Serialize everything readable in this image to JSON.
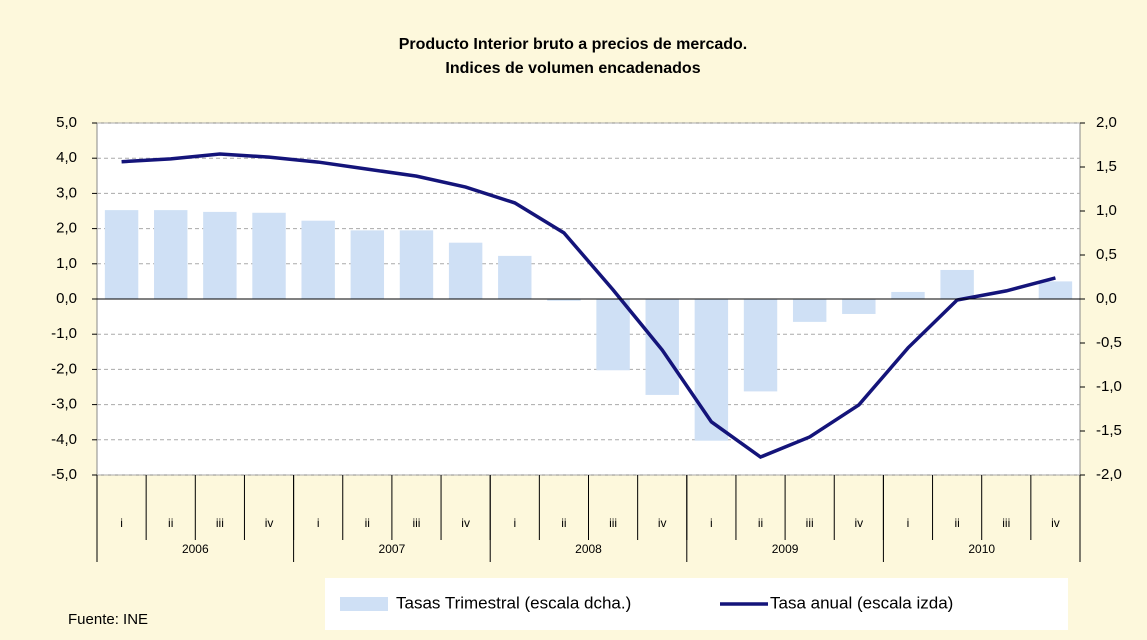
{
  "chart_data": {
    "type": "bar_line",
    "title": "Producto Interior bruto a precios de mercado.",
    "subtitle": "Indices de volumen encadenados",
    "categories": [
      "i",
      "ii",
      "iii",
      "iv",
      "i",
      "ii",
      "iii",
      "iv",
      "i",
      "ii",
      "iii",
      "iv",
      "i",
      "ii",
      "iii",
      "iv",
      "i",
      "ii",
      "iii",
      "iv"
    ],
    "years": [
      "2006",
      "2007",
      "2008",
      "2009",
      "2010"
    ],
    "series": [
      {
        "name": "Tasas Trimestral (escala dcha.)",
        "color": "#cfe0f5",
        "axis": "y2",
        "kind": "bar",
        "values": [
          1.01,
          1.01,
          0.99,
          0.98,
          0.89,
          0.78,
          0.78,
          0.64,
          0.49,
          -0.02,
          -0.81,
          -1.09,
          -1.61,
          -1.05,
          -0.26,
          -0.17,
          0.08,
          0.33,
          0.0,
          0.2
        ]
      },
      {
        "name": "Tasa anual (escala izda)",
        "color": "#14147a",
        "kind": "line",
        "values": [
          3.9,
          3.98,
          4.12,
          4.03,
          3.89,
          3.69,
          3.49,
          3.18,
          2.73,
          1.88,
          0.26,
          -1.45,
          -3.49,
          -4.49,
          -3.92,
          -3.01,
          -1.39,
          -0.03,
          0.23,
          0.6
        ]
      }
    ],
    "ylim": [
      -5,
      5
    ],
    "yticks": [
      {
        "value": 5,
        "label": "5,0"
      },
      {
        "value": 4,
        "label": "4,0"
      },
      {
        "value": 3,
        "label": "3,0"
      },
      {
        "value": 2,
        "label": "2,0"
      },
      {
        "value": 1,
        "label": "1,0"
      },
      {
        "value": 0,
        "label": "0,0"
      },
      {
        "value": -1,
        "label": "-1,0"
      },
      {
        "value": -2,
        "label": "-2,0"
      },
      {
        "value": -3,
        "label": "-3,0"
      },
      {
        "value": -4,
        "label": "-4,0"
      },
      {
        "value": -5,
        "label": "-5,0"
      }
    ],
    "y2lim": [
      -2,
      2
    ],
    "y2ticks": [
      {
        "value": 2,
        "label": "2,0"
      },
      {
        "value": 1.5,
        "label": "1,5"
      },
      {
        "value": 1,
        "label": "1,0"
      },
      {
        "value": 0.5,
        "label": "0,5"
      },
      {
        "value": 0,
        "label": "0,0"
      },
      {
        "value": -0.5,
        "label": "-0,5"
      },
      {
        "value": -1,
        "label": "-1,0"
      },
      {
        "value": -1.5,
        "label": "-1,5"
      },
      {
        "value": -2,
        "label": "-2,0"
      }
    ],
    "grid": true,
    "source": "Fuente: INE"
  }
}
